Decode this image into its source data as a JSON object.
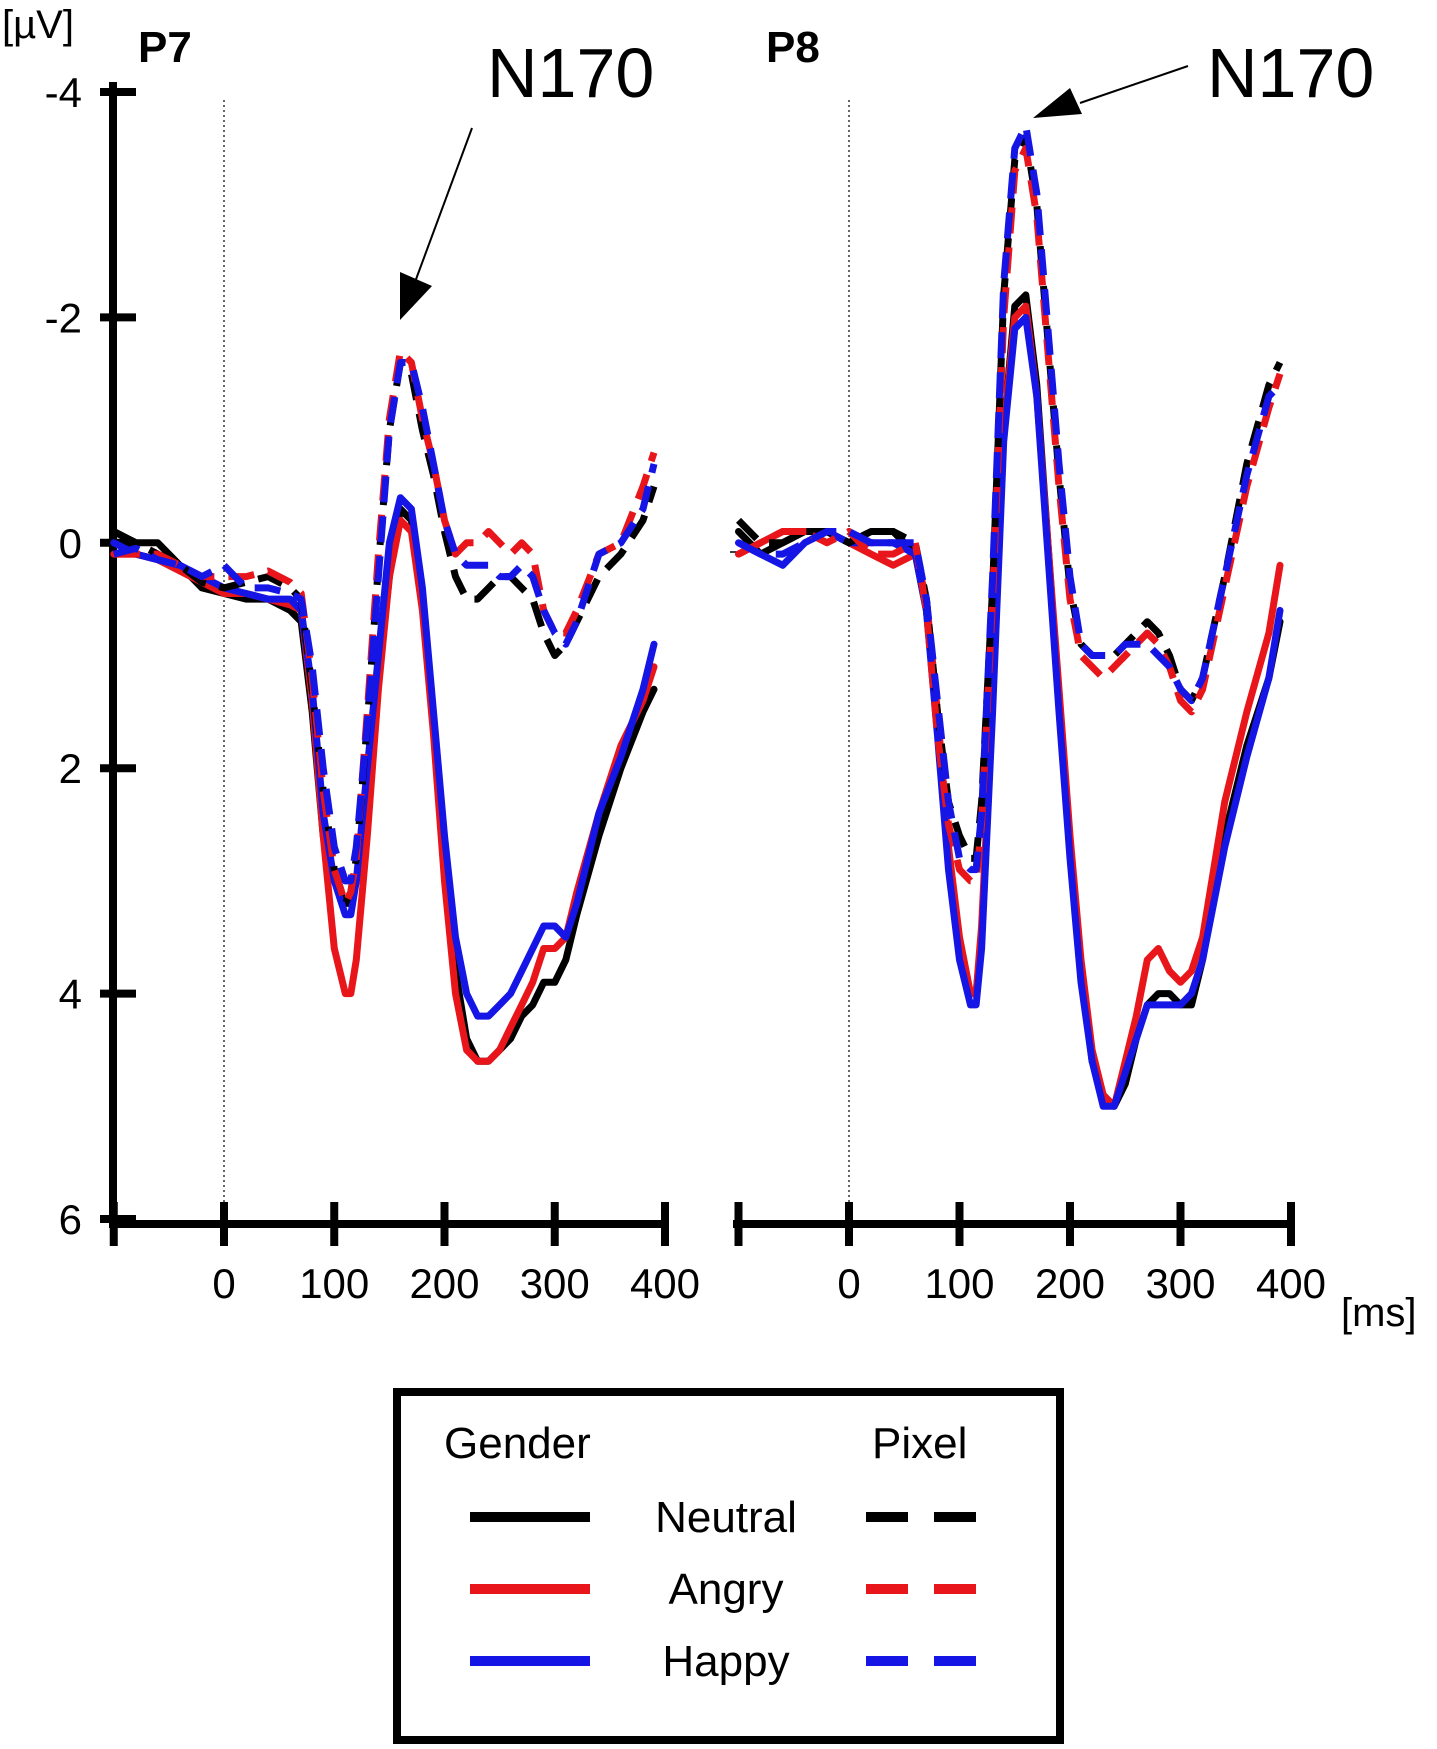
{
  "chart_data": [
    {
      "panel": "P7",
      "type": "line",
      "title": "P7",
      "ylabel": "[µV]",
      "xlabel": "",
      "ylim": [
        -4,
        6
      ],
      "y_inverted": true,
      "xlim": [
        -100,
        400
      ],
      "xticks": [
        "0",
        "100",
        "200",
        "300",
        "400"
      ],
      "yticks": [
        "-4",
        "-2",
        "0",
        "2",
        "4",
        "6"
      ],
      "annotation": {
        "text": "N170",
        "target": [
          155,
          -2.0
        ]
      },
      "series": [
        {
          "name": "Gender Neutral",
          "color": "#000000",
          "dash": false,
          "x": [
            -100,
            -80,
            -60,
            -40,
            -20,
            0,
            20,
            40,
            60,
            70,
            80,
            90,
            100,
            110,
            115,
            120,
            130,
            140,
            150,
            160,
            170,
            180,
            190,
            200,
            210,
            220,
            230,
            240,
            250,
            260,
            270,
            280,
            290,
            300,
            310,
            320,
            340,
            360,
            380,
            390
          ],
          "y": [
            -0.1,
            0,
            0,
            0.2,
            0.4,
            0.45,
            0.5,
            0.5,
            0.6,
            0.7,
            1.5,
            2.6,
            3.0,
            3.2,
            3.2,
            3.0,
            2.2,
            1.2,
            0.3,
            -0.3,
            -0.2,
            0.5,
            1.6,
            2.8,
            3.8,
            4.4,
            4.6,
            4.6,
            4.5,
            4.4,
            4.2,
            4.1,
            3.9,
            3.9,
            3.7,
            3.3,
            2.6,
            2.0,
            1.5,
            1.3
          ]
        },
        {
          "name": "Gender Angry",
          "color": "#e8161b",
          "dash": false,
          "x": [
            -100,
            -80,
            -60,
            -40,
            -20,
            0,
            20,
            40,
            60,
            70,
            80,
            90,
            100,
            110,
            115,
            120,
            130,
            140,
            150,
            160,
            170,
            180,
            190,
            200,
            210,
            220,
            230,
            240,
            250,
            260,
            270,
            280,
            290,
            300,
            310,
            320,
            340,
            360,
            380,
            390
          ],
          "y": [
            0.1,
            0.1,
            0.15,
            0.25,
            0.35,
            0.45,
            0.45,
            0.5,
            0.55,
            0.6,
            1.4,
            2.6,
            3.6,
            4.0,
            4.0,
            3.7,
            2.6,
            1.3,
            0.3,
            -0.2,
            -0.1,
            0.6,
            1.7,
            3.0,
            4.0,
            4.5,
            4.6,
            4.6,
            4.5,
            4.3,
            4.1,
            3.9,
            3.6,
            3.6,
            3.5,
            3.1,
            2.4,
            1.8,
            1.4,
            1.1
          ]
        },
        {
          "name": "Gender Happy",
          "color": "#1515e6",
          "dash": false,
          "x": [
            -100,
            -80,
            -60,
            -40,
            -20,
            0,
            20,
            40,
            60,
            70,
            80,
            90,
            100,
            110,
            115,
            120,
            130,
            140,
            150,
            160,
            170,
            180,
            190,
            200,
            210,
            220,
            230,
            240,
            250,
            260,
            270,
            280,
            290,
            300,
            310,
            320,
            340,
            360,
            380,
            390
          ],
          "y": [
            0,
            0.1,
            0.15,
            0.2,
            0.3,
            0.4,
            0.45,
            0.5,
            0.5,
            0.6,
            1.3,
            2.4,
            3.0,
            3.3,
            3.3,
            3.0,
            2.0,
            1.0,
            0.0,
            -0.4,
            -0.3,
            0.4,
            1.5,
            2.6,
            3.5,
            4.0,
            4.2,
            4.2,
            4.1,
            4.0,
            3.8,
            3.6,
            3.4,
            3.4,
            3.5,
            3.2,
            2.4,
            1.9,
            1.3,
            0.9
          ]
        },
        {
          "name": "Pixel Neutral",
          "color": "#000000",
          "dash": true,
          "x": [
            -100,
            -80,
            -60,
            -40,
            -20,
            0,
            20,
            40,
            60,
            70,
            80,
            90,
            100,
            110,
            115,
            120,
            130,
            140,
            150,
            160,
            170,
            180,
            190,
            200,
            210,
            220,
            230,
            240,
            250,
            260,
            270,
            280,
            290,
            300,
            310,
            320,
            340,
            360,
            380,
            390
          ],
          "y": [
            -0.1,
            0,
            0.1,
            0.2,
            0.35,
            0.4,
            0.35,
            0.3,
            0.4,
            0.5,
            1.3,
            2.2,
            2.9,
            3.2,
            3.1,
            2.8,
            1.6,
            0.2,
            -1.0,
            -1.6,
            -1.5,
            -1.0,
            -0.6,
            -0.1,
            0.3,
            0.5,
            0.5,
            0.4,
            0.3,
            0.3,
            0.4,
            0.5,
            0.8,
            1.0,
            0.9,
            0.7,
            0.3,
            0.1,
            -0.2,
            -0.5
          ]
        },
        {
          "name": "Pixel Angry",
          "color": "#e8161b",
          "dash": true,
          "x": [
            -100,
            -80,
            -60,
            -40,
            -20,
            0,
            20,
            40,
            60,
            70,
            80,
            90,
            100,
            110,
            115,
            120,
            130,
            140,
            150,
            160,
            170,
            180,
            190,
            200,
            210,
            220,
            230,
            240,
            250,
            260,
            270,
            280,
            290,
            300,
            310,
            320,
            340,
            360,
            380,
            390
          ],
          "y": [
            0.1,
            0.1,
            0.1,
            0.2,
            0.3,
            0.3,
            0.3,
            0.25,
            0.35,
            0.45,
            1.2,
            2.2,
            2.9,
            3.2,
            3.1,
            2.8,
            1.5,
            0.1,
            -1.1,
            -1.7,
            -1.6,
            -1.1,
            -0.7,
            -0.2,
            0.1,
            0.0,
            0.0,
            -0.1,
            0.0,
            0.1,
            0.0,
            0.1,
            0.6,
            0.8,
            0.8,
            0.6,
            0.1,
            0.0,
            -0.5,
            -0.8
          ]
        },
        {
          "name": "Pixel Happy",
          "color": "#1515e6",
          "dash": true,
          "x": [
            -100,
            -80,
            -60,
            -40,
            -20,
            0,
            20,
            40,
            60,
            70,
            80,
            90,
            100,
            110,
            115,
            120,
            130,
            140,
            150,
            160,
            170,
            180,
            190,
            200,
            210,
            220,
            230,
            240,
            250,
            260,
            270,
            280,
            290,
            300,
            310,
            320,
            340,
            360,
            380,
            390
          ],
          "y": [
            0.1,
            0.05,
            0.15,
            0.2,
            0.3,
            0.2,
            0.4,
            0.4,
            0.45,
            0.5,
            1.1,
            2.0,
            2.7,
            3.0,
            3.0,
            2.7,
            1.6,
            0.3,
            -1.0,
            -1.6,
            -1.6,
            -1.2,
            -0.7,
            -0.2,
            0.1,
            0.2,
            0.2,
            0.2,
            0.3,
            0.3,
            0.2,
            0.3,
            0.6,
            0.8,
            0.9,
            0.7,
            0.1,
            0.0,
            -0.3,
            -0.7
          ]
        }
      ]
    },
    {
      "panel": "P8",
      "type": "line",
      "title": "P8",
      "ylabel": "",
      "xlabel": "[ms]",
      "ylim": [
        -4,
        6
      ],
      "y_inverted": true,
      "xlim": [
        -100,
        400
      ],
      "xticks": [
        "0",
        "100",
        "200",
        "300",
        "400"
      ],
      "annotation": {
        "text": "N170",
        "target": [
          168,
          -3.8
        ]
      },
      "series": [
        {
          "name": "Gender Neutral",
          "color": "#000000",
          "dash": false,
          "x": [
            -100,
            -80,
            -60,
            -40,
            -20,
            0,
            20,
            40,
            60,
            70,
            80,
            90,
            100,
            110,
            115,
            120,
            130,
            140,
            150,
            160,
            170,
            180,
            190,
            200,
            210,
            220,
            230,
            240,
            250,
            260,
            270,
            280,
            290,
            300,
            310,
            320,
            340,
            360,
            380,
            390
          ],
          "y": [
            -0.1,
            0.1,
            0,
            -0.1,
            -0.1,
            0,
            -0.1,
            -0.1,
            0.1,
            0.6,
            1.6,
            2.8,
            3.6,
            4.0,
            4.0,
            3.5,
            1.4,
            -1.0,
            -2.1,
            -2.2,
            -1.4,
            0.0,
            1.4,
            2.7,
            3.8,
            4.6,
            4.9,
            5.0,
            4.8,
            4.4,
            4.1,
            4.0,
            4.0,
            4.1,
            4.1,
            3.7,
            2.6,
            1.8,
            1.2,
            0.7
          ]
        },
        {
          "name": "Gender Angry",
          "color": "#e8161b",
          "dash": false,
          "x": [
            -100,
            -80,
            -60,
            -40,
            -20,
            0,
            20,
            40,
            60,
            70,
            80,
            90,
            100,
            110,
            115,
            120,
            130,
            140,
            150,
            160,
            170,
            180,
            190,
            200,
            210,
            220,
            230,
            240,
            250,
            260,
            270,
            280,
            290,
            300,
            310,
            320,
            340,
            360,
            380,
            390
          ],
          "y": [
            0.1,
            0,
            -0.1,
            -0.1,
            -0.1,
            0,
            0.1,
            0.2,
            0.1,
            0.5,
            1.5,
            2.7,
            3.5,
            4.0,
            4.0,
            3.4,
            1.4,
            -1.0,
            -2.0,
            -2.1,
            -1.3,
            0.0,
            1.3,
            2.6,
            3.7,
            4.5,
            4.9,
            5.0,
            4.6,
            4.2,
            3.7,
            3.6,
            3.8,
            3.9,
            3.8,
            3.5,
            2.3,
            1.5,
            0.8,
            0.2
          ]
        },
        {
          "name": "Gender Happy",
          "color": "#1515e6",
          "dash": false,
          "x": [
            -100,
            -80,
            -60,
            -40,
            -20,
            0,
            20,
            40,
            60,
            70,
            80,
            90,
            100,
            110,
            115,
            120,
            130,
            140,
            150,
            160,
            170,
            180,
            190,
            200,
            210,
            220,
            230,
            240,
            250,
            260,
            270,
            280,
            290,
            300,
            310,
            320,
            340,
            360,
            380,
            390
          ],
          "y": [
            0,
            0.1,
            0.2,
            0,
            -0.1,
            0,
            0,
            0,
            0.1,
            0.6,
            1.7,
            2.9,
            3.7,
            4.1,
            4.1,
            3.6,
            1.5,
            -0.9,
            -1.9,
            -2.0,
            -1.3,
            0.1,
            1.5,
            2.8,
            3.9,
            4.6,
            5.0,
            5.0,
            4.7,
            4.4,
            4.1,
            4.1,
            4.1,
            4.1,
            4.0,
            3.7,
            2.7,
            1.9,
            1.2,
            0.6
          ]
        },
        {
          "name": "Pixel Neutral",
          "color": "#000000",
          "dash": true,
          "x": [
            -100,
            -80,
            -60,
            -40,
            -20,
            0,
            20,
            40,
            60,
            70,
            80,
            90,
            100,
            110,
            115,
            120,
            130,
            140,
            150,
            160,
            170,
            180,
            190,
            200,
            210,
            220,
            230,
            240,
            250,
            260,
            270,
            280,
            290,
            300,
            310,
            320,
            340,
            360,
            380,
            390
          ],
          "y": [
            -0.2,
            0,
            0,
            -0.1,
            -0.1,
            0,
            -0.1,
            -0.1,
            0,
            0.5,
            1.5,
            2.3,
            2.6,
            2.8,
            2.8,
            2.3,
            0.4,
            -2.2,
            -3.4,
            -3.6,
            -3.0,
            -1.8,
            -0.6,
            0.4,
            0.9,
            1.0,
            1.0,
            1.0,
            0.9,
            0.8,
            0.7,
            0.8,
            1.0,
            1.3,
            1.4,
            1.2,
            0.3,
            -0.7,
            -1.4,
            -1.6
          ]
        },
        {
          "name": "Pixel Angry",
          "color": "#e8161b",
          "dash": true,
          "x": [
            -100,
            -80,
            -60,
            -40,
            -20,
            0,
            20,
            40,
            60,
            70,
            80,
            90,
            100,
            110,
            115,
            120,
            130,
            140,
            150,
            160,
            170,
            180,
            190,
            200,
            210,
            220,
            230,
            240,
            250,
            260,
            270,
            280,
            290,
            300,
            310,
            320,
            340,
            360,
            380,
            390
          ],
          "y": [
            0.1,
            0,
            -0.1,
            -0.1,
            0,
            -0.1,
            0.1,
            0.1,
            0,
            0.6,
            1.7,
            2.5,
            2.9,
            3.0,
            3.0,
            2.5,
            0.5,
            -2.0,
            -3.3,
            -3.5,
            -2.9,
            -1.7,
            -0.5,
            0.5,
            1.0,
            1.1,
            1.2,
            1.1,
            1.0,
            0.9,
            0.8,
            0.9,
            1.1,
            1.4,
            1.5,
            1.3,
            0.4,
            -0.5,
            -1.2,
            -1.5
          ]
        },
        {
          "name": "Pixel Happy",
          "color": "#1515e6",
          "dash": true,
          "x": [
            -100,
            -80,
            -60,
            -40,
            -20,
            0,
            20,
            40,
            60,
            70,
            80,
            90,
            100,
            110,
            115,
            120,
            130,
            140,
            150,
            160,
            170,
            180,
            190,
            200,
            210,
            220,
            230,
            240,
            250,
            260,
            270,
            280,
            290,
            300,
            310,
            320,
            340,
            360,
            380,
            390
          ],
          "y": [
            0,
            0.1,
            0.1,
            0,
            -0.1,
            -0.1,
            0,
            0,
            0,
            0.5,
            1.4,
            2.3,
            2.8,
            2.9,
            2.9,
            2.4,
            0.3,
            -2.3,
            -3.5,
            -3.7,
            -3.1,
            -1.9,
            -0.7,
            0.3,
            0.9,
            1.0,
            1.0,
            1.0,
            0.9,
            0.9,
            0.9,
            1.0,
            1.1,
            1.3,
            1.4,
            1.2,
            0.3,
            -0.6,
            -1.3,
            -1.4
          ]
        }
      ]
    }
  ],
  "legend": {
    "group_headers": [
      "Gender",
      "Pixel"
    ],
    "rows": [
      {
        "label": "Neutral",
        "color": "#000000"
      },
      {
        "label": "Angry",
        "color": "#e8161b"
      },
      {
        "label": "Happy",
        "color": "#1515e6"
      }
    ]
  }
}
